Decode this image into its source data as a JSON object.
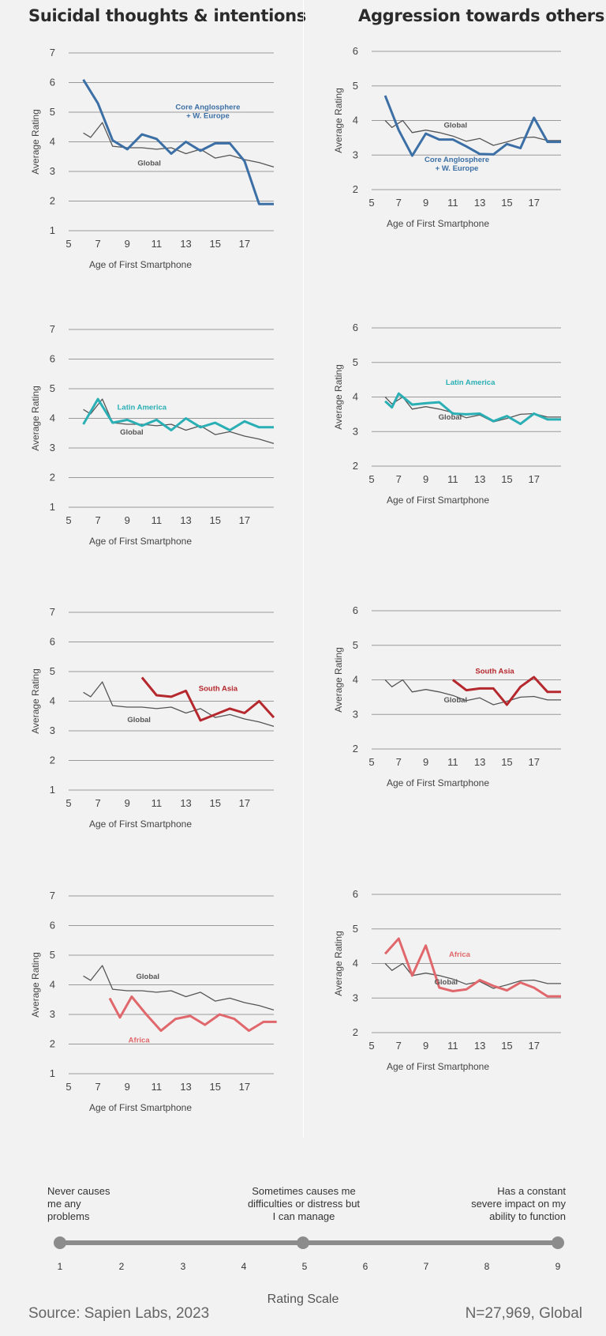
{
  "titles": {
    "left": "Suicidal thoughts & intentions",
    "right": "Aggression towards others"
  },
  "colors": {
    "global": "#555555",
    "anglo": "#3b6fa5",
    "latin": "#2aafb5",
    "southasia": "#b5282e",
    "africa": "#e0676b"
  },
  "chart_data": [
    {
      "type": "line",
      "panel": "left-1",
      "xlabel": "Age of First Smartphone",
      "ylabel": "Average Rating",
      "xlim": [
        5,
        19
      ],
      "ylim": [
        1,
        7
      ],
      "xticks": [
        5,
        7,
        9,
        11,
        13,
        15,
        17
      ],
      "yticks": [
        1,
        2,
        3,
        4,
        5,
        6,
        7
      ],
      "series": [
        {
          "name": "Global",
          "x": [
            6,
            6.5,
            7.3,
            8,
            9,
            10,
            11,
            12,
            13,
            14,
            15,
            16,
            17,
            18,
            19
          ],
          "y": [
            4.3,
            4.15,
            4.65,
            3.85,
            3.8,
            3.8,
            3.75,
            3.8,
            3.6,
            3.75,
            3.45,
            3.55,
            3.4,
            3.3,
            3.15
          ]
        },
        {
          "name": "Core Anglosphere\n+ W. Europe",
          "x": [
            6,
            7,
            8,
            9,
            10,
            11,
            12,
            13,
            14,
            15,
            16,
            17,
            18,
            19
          ],
          "y": [
            6.1,
            5.3,
            4.05,
            3.75,
            4.25,
            4.1,
            3.6,
            4.0,
            3.7,
            3.95,
            3.95,
            3.35,
            1.9,
            1.9
          ]
        }
      ]
    },
    {
      "type": "line",
      "panel": "right-1",
      "xlabel": "Age of First Smartphone",
      "ylabel": "Average Rating",
      "xlim": [
        5,
        19
      ],
      "ylim": [
        2,
        6
      ],
      "xticks": [
        5,
        7,
        9,
        11,
        13,
        15,
        17
      ],
      "yticks": [
        2,
        3,
        4,
        5,
        6
      ],
      "series": [
        {
          "name": "Global",
          "x": [
            6,
            6.5,
            7.3,
            8,
            9,
            10,
            11,
            12,
            13,
            14,
            15,
            16,
            17,
            18,
            19
          ],
          "y": [
            4.0,
            3.8,
            4.0,
            3.65,
            3.72,
            3.65,
            3.55,
            3.4,
            3.48,
            3.28,
            3.38,
            3.5,
            3.52,
            3.42,
            3.42
          ]
        },
        {
          "name": "Core Anglosphere\n+ W. Europe",
          "x": [
            6,
            7,
            8,
            9,
            10,
            11,
            12,
            13,
            14,
            15,
            16,
            17,
            18,
            19
          ],
          "y": [
            4.72,
            3.72,
            2.98,
            3.62,
            3.45,
            3.45,
            3.25,
            3.03,
            3.02,
            3.32,
            3.2,
            4.08,
            3.38,
            3.38
          ]
        }
      ]
    },
    {
      "type": "line",
      "panel": "left-2",
      "xlabel": "Age of First Smartphone",
      "ylabel": "Average Rating",
      "xlim": [
        5,
        19
      ],
      "ylim": [
        1,
        7
      ],
      "xticks": [
        5,
        7,
        9,
        11,
        13,
        15,
        17
      ],
      "yticks": [
        1,
        2,
        3,
        4,
        5,
        6,
        7
      ],
      "series": [
        {
          "name": "Global",
          "x": [
            6,
            6.5,
            7.3,
            8,
            9,
            10,
            11,
            12,
            13,
            14,
            15,
            16,
            17,
            18,
            19
          ],
          "y": [
            4.3,
            4.15,
            4.65,
            3.85,
            3.8,
            3.8,
            3.75,
            3.8,
            3.6,
            3.75,
            3.45,
            3.55,
            3.4,
            3.3,
            3.15
          ]
        },
        {
          "name": "Latin America",
          "x": [
            6,
            7,
            8,
            9,
            10,
            11,
            12,
            13,
            14,
            15,
            16,
            17,
            18,
            19
          ],
          "y": [
            3.8,
            4.65,
            3.85,
            3.95,
            3.75,
            3.95,
            3.6,
            4.0,
            3.7,
            3.85,
            3.6,
            3.9,
            3.7,
            3.7
          ]
        }
      ]
    },
    {
      "type": "line",
      "panel": "right-2",
      "xlabel": "Age of First Smartphone",
      "ylabel": "Average Rating",
      "xlim": [
        5,
        19
      ],
      "ylim": [
        2,
        6
      ],
      "xticks": [
        5,
        7,
        9,
        11,
        13,
        15,
        17
      ],
      "yticks": [
        2,
        3,
        4,
        5,
        6
      ],
      "series": [
        {
          "name": "Global",
          "x": [
            6,
            6.5,
            7.3,
            8,
            9,
            10,
            11,
            12,
            13,
            14,
            15,
            16,
            17,
            18,
            19
          ],
          "y": [
            4.0,
            3.8,
            4.0,
            3.65,
            3.72,
            3.65,
            3.55,
            3.4,
            3.48,
            3.28,
            3.38,
            3.5,
            3.52,
            3.42,
            3.42
          ]
        },
        {
          "name": "Latin America",
          "x": [
            6,
            6.5,
            7,
            8,
            9,
            10,
            11,
            12,
            13,
            14,
            15,
            16,
            17,
            18,
            19
          ],
          "y": [
            3.88,
            3.7,
            4.1,
            3.78,
            3.82,
            3.85,
            3.52,
            3.5,
            3.52,
            3.3,
            3.45,
            3.22,
            3.52,
            3.35,
            3.35
          ]
        }
      ]
    },
    {
      "type": "line",
      "panel": "left-3",
      "xlabel": "Age of First Smartphone",
      "ylabel": "Average Rating",
      "xlim": [
        5,
        19
      ],
      "ylim": [
        1,
        7
      ],
      "xticks": [
        5,
        7,
        9,
        11,
        13,
        15,
        17
      ],
      "yticks": [
        1,
        2,
        3,
        4,
        5,
        6,
        7
      ],
      "series": [
        {
          "name": "Global",
          "x": [
            6,
            6.5,
            7.3,
            8,
            9,
            10,
            11,
            12,
            13,
            14,
            15,
            16,
            17,
            18,
            19
          ],
          "y": [
            4.3,
            4.15,
            4.65,
            3.85,
            3.8,
            3.8,
            3.75,
            3.8,
            3.6,
            3.75,
            3.45,
            3.55,
            3.4,
            3.3,
            3.15
          ]
        },
        {
          "name": "South Asia",
          "x": [
            10,
            11,
            12,
            13,
            14,
            15,
            16,
            17,
            18,
            19
          ],
          "y": [
            4.8,
            4.2,
            4.15,
            4.35,
            3.35,
            3.55,
            3.75,
            3.6,
            4.0,
            3.45
          ]
        }
      ]
    },
    {
      "type": "line",
      "panel": "right-3",
      "xlabel": "Age of First Smartphone",
      "ylabel": "Average Rating",
      "xlim": [
        5,
        19
      ],
      "ylim": [
        2,
        6
      ],
      "xticks": [
        5,
        7,
        9,
        11,
        13,
        15,
        17
      ],
      "yticks": [
        2,
        3,
        4,
        5,
        6
      ],
      "series": [
        {
          "name": "Global",
          "x": [
            6,
            6.5,
            7.3,
            8,
            9,
            10,
            11,
            12,
            13,
            14,
            15,
            16,
            17,
            18,
            19
          ],
          "y": [
            4.0,
            3.8,
            4.0,
            3.65,
            3.72,
            3.65,
            3.55,
            3.4,
            3.48,
            3.28,
            3.38,
            3.5,
            3.52,
            3.42,
            3.42
          ]
        },
        {
          "name": "South Asia",
          "x": [
            11,
            12,
            13,
            14,
            15,
            16,
            17,
            18,
            19
          ],
          "y": [
            4.0,
            3.7,
            3.75,
            3.75,
            3.28,
            3.8,
            4.08,
            3.65,
            3.65
          ]
        }
      ]
    },
    {
      "type": "line",
      "panel": "left-4",
      "xlabel": "Age of First Smartphone",
      "ylabel": "Average Rating",
      "xlim": [
        5,
        19
      ],
      "ylim": [
        1,
        7
      ],
      "xticks": [
        5,
        7,
        9,
        11,
        13,
        15,
        17
      ],
      "yticks": [
        1,
        2,
        3,
        4,
        5,
        6,
        7
      ],
      "series": [
        {
          "name": "Global",
          "x": [
            6,
            6.5,
            7.3,
            8,
            9,
            10,
            11,
            12,
            13,
            14,
            15,
            16,
            17,
            18,
            19
          ],
          "y": [
            4.3,
            4.15,
            4.65,
            3.85,
            3.8,
            3.8,
            3.75,
            3.8,
            3.6,
            3.75,
            3.45,
            3.55,
            3.4,
            3.3,
            3.15
          ]
        },
        {
          "name": "Africa",
          "x": [
            7.8,
            8.5,
            9.3,
            10.3,
            11.3,
            12.3,
            13.3,
            14.3,
            15.3,
            16.3,
            17.3,
            18.3,
            19.2
          ],
          "y": [
            3.55,
            2.9,
            3.6,
            3.0,
            2.45,
            2.85,
            2.95,
            2.65,
            3.0,
            2.85,
            2.45,
            2.75,
            2.75
          ]
        }
      ]
    },
    {
      "type": "line",
      "panel": "right-4",
      "xlabel": "Age of First Smartphone",
      "ylabel": "Average Rating",
      "xlim": [
        5,
        19
      ],
      "ylim": [
        2,
        6
      ],
      "xticks": [
        5,
        7,
        9,
        11,
        13,
        15,
        17
      ],
      "yticks": [
        2,
        3,
        4,
        5,
        6
      ],
      "series": [
        {
          "name": "Global",
          "x": [
            6,
            6.5,
            7.3,
            8,
            9,
            10,
            11,
            12,
            13,
            14,
            15,
            16,
            17,
            18,
            19
          ],
          "y": [
            4.0,
            3.8,
            4.0,
            3.65,
            3.72,
            3.65,
            3.55,
            3.4,
            3.48,
            3.28,
            3.38,
            3.5,
            3.52,
            3.42,
            3.42
          ]
        },
        {
          "name": "Africa",
          "x": [
            6,
            7,
            8,
            9,
            10,
            11,
            12,
            13,
            14,
            15,
            16,
            17,
            18,
            19
          ],
          "y": [
            4.28,
            4.72,
            3.65,
            4.52,
            3.3,
            3.2,
            3.25,
            3.52,
            3.35,
            3.22,
            3.45,
            3.3,
            3.05,
            3.05
          ]
        }
      ]
    }
  ],
  "scale": {
    "title": "Rating Scale",
    "desc_1": "Never causes\nme any\nproblems",
    "desc_5": "Sometimes causes me\ndifficulties or distress but\nI can manage",
    "desc_9": "Has a constant\nsevere impact on my\nability to function",
    "numbers": [
      "1",
      "2",
      "3",
      "4",
      "5",
      "6",
      "7",
      "8",
      "9"
    ]
  },
  "footer": {
    "source": "Source: Sapien Labs, 2023",
    "n": "N=27,969, Global"
  }
}
